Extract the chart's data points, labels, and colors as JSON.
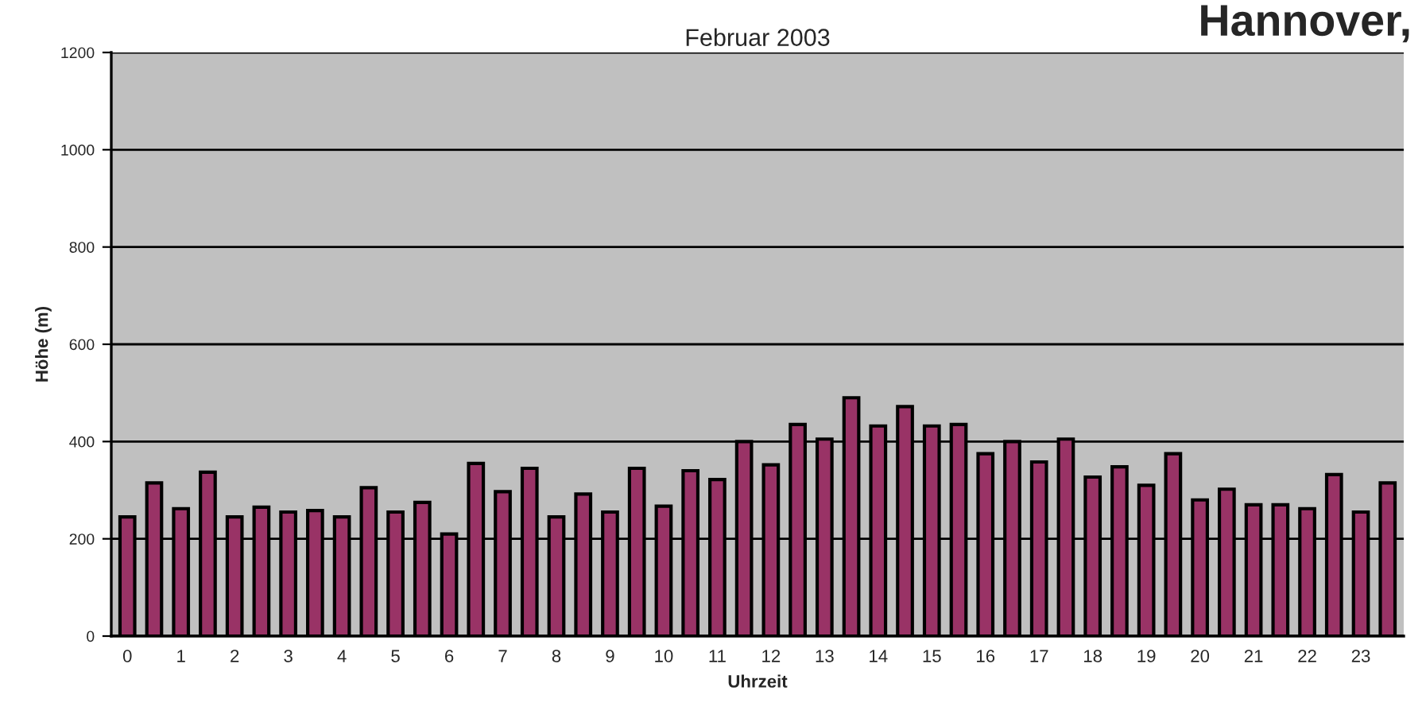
{
  "chart_data": {
    "type": "bar",
    "title": "Februar 2003",
    "xlabel": "Uhrzeit",
    "ylabel": "Höhe (m)",
    "annotations": [
      "Hannover,"
    ],
    "categories": [
      "0",
      null,
      "1",
      null,
      "2",
      null,
      "3",
      null,
      "4",
      null,
      "5",
      null,
      "6",
      null,
      "7",
      null,
      "8",
      null,
      "9",
      null,
      "10",
      null,
      "11",
      null,
      "12",
      null,
      "13",
      null,
      "14",
      null,
      "15",
      null,
      "16",
      null,
      "17",
      null,
      "18",
      null,
      "19",
      null,
      "20",
      null,
      "21",
      null,
      "22",
      null,
      "23",
      null
    ],
    "series": [
      {
        "color": "#993366",
        "values": [
          245,
          315,
          262,
          337,
          245,
          265,
          255,
          258,
          245,
          305,
          255,
          275,
          210,
          355,
          297,
          345,
          245,
          292,
          255,
          345,
          267,
          340,
          322,
          400,
          352,
          435,
          405,
          490,
          432,
          472,
          432,
          435,
          375,
          400,
          358,
          405,
          327,
          348,
          310,
          375,
          280,
          302,
          270,
          270,
          262,
          332,
          255,
          315
        ]
      }
    ],
    "ylim": [
      0,
      1200
    ],
    "yticks": [
      0,
      200,
      400,
      600,
      800,
      1000,
      1200
    ],
    "grid": "y",
    "legend": false
  }
}
